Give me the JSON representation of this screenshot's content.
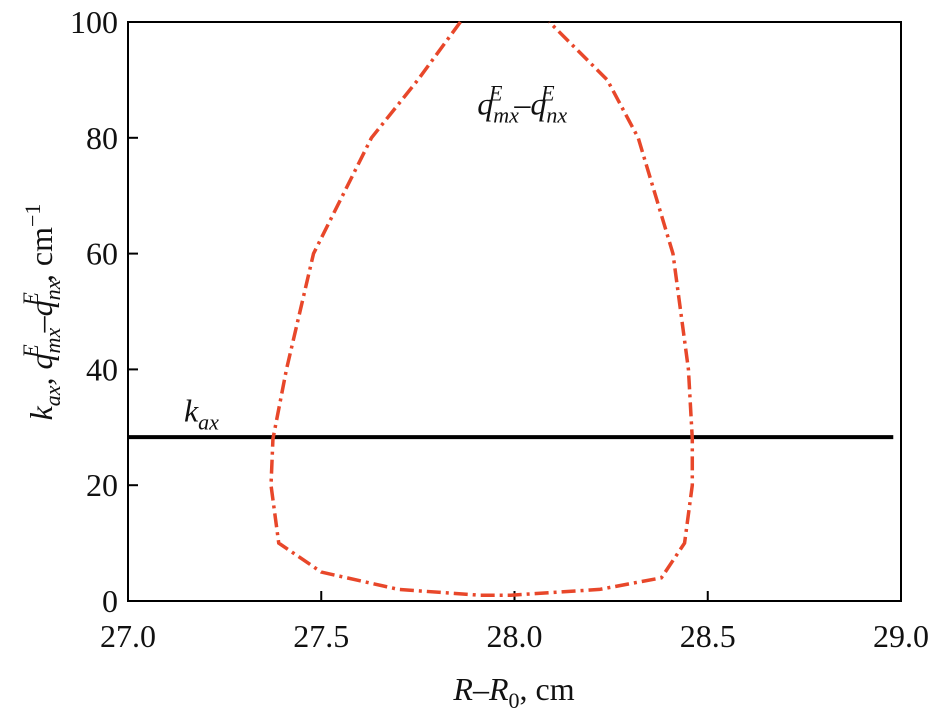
{
  "chart_data": {
    "type": "line",
    "xlabel": [
      "R–R",
      "0",
      ", cm"
    ],
    "ylabel": [
      "k",
      "ax",
      ", q",
      "mx",
      "E",
      "–q",
      "nx",
      "E",
      ", cm",
      "−1"
    ],
    "annotations": [
      {
        "parts": [
          "q",
          "mx",
          "E",
          "–q",
          "nx",
          "E"
        ],
        "x": 28.02,
        "y": 84
      },
      {
        "parts": [
          "k",
          "ax"
        ],
        "x": 27.19,
        "y": 31
      }
    ],
    "xlim": [
      27.0,
      29.0
    ],
    "xticks": [
      {
        "value": 27.0,
        "label": "27.0"
      },
      {
        "value": 27.5,
        "label": "27.5"
      },
      {
        "value": 28.0,
        "label": "28.0"
      },
      {
        "value": 28.5,
        "label": "28.5"
      },
      {
        "value": 29.0,
        "label": "29.0"
      }
    ],
    "ylim": [
      0,
      100
    ],
    "yticks": [
      0,
      20,
      40,
      60,
      80,
      100
    ],
    "series": [
      {
        "color": "#000000",
        "linestyle": "solid",
        "x": [
          27.0,
          28.98
        ],
        "values": [
          28.3,
          28.3
        ]
      },
      {
        "color": "#e8472a",
        "linestyle": "dashdot",
        "x": [
          27.86,
          27.75,
          27.63,
          27.48,
          27.41,
          27.375,
          27.37,
          27.39,
          27.5,
          27.7,
          27.91,
          27.99,
          28.22,
          28.38,
          28.44,
          28.46,
          28.46,
          28.45,
          28.41,
          28.32,
          28.24,
          28.09
        ],
        "values": [
          100,
          90,
          80,
          60,
          40,
          28,
          20,
          10,
          5,
          2,
          1,
          1,
          2,
          4,
          10,
          20,
          28,
          40,
          60,
          80,
          90,
          100
        ]
      }
    ]
  }
}
